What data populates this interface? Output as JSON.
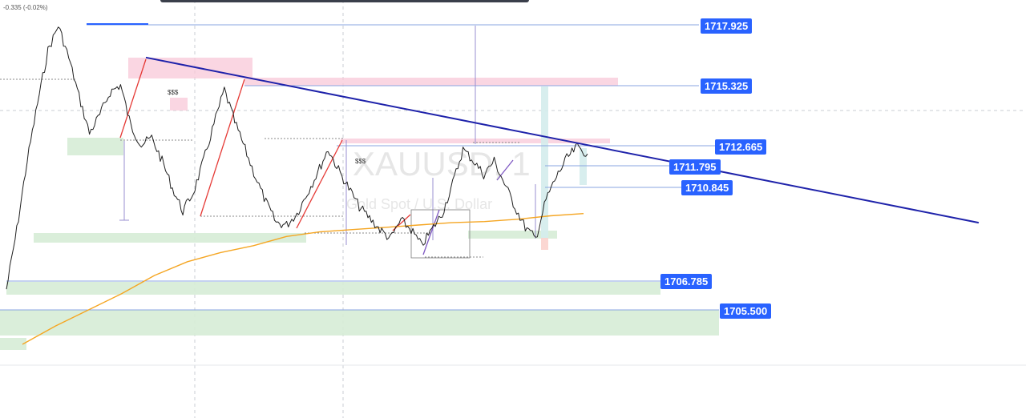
{
  "chart_data": {
    "type": "line",
    "symbol": "XAUUSD, 1",
    "instrument": "Gold Spot / U.S. Dollar",
    "change_text": "-0.335 (-0.02%)",
    "liquidity_tag": "$$$",
    "price_levels": [
      "1717.925",
      "1715.325",
      "1712.665",
      "1711.795",
      "1710.845",
      "1706.785",
      "1705.500"
    ],
    "ylim": [
      1703.5,
      1719.0
    ],
    "price_series": [
      1706.4,
      1709.0,
      1712.0,
      1714.5,
      1716.8,
      1717.9,
      1716.5,
      1714.8,
      1713.2,
      1714.0,
      1715.0,
      1715.3,
      1713.5,
      1712.7,
      1713.0,
      1712.0,
      1710.8,
      1709.8,
      1710.6,
      1712.0,
      1713.6,
      1715.1,
      1713.7,
      1712.5,
      1711.3,
      1710.2,
      1709.3,
      1709.2,
      1709.7,
      1710.6,
      1711.5,
      1712.5,
      1711.6,
      1710.8,
      1710.0,
      1709.5,
      1709.0,
      1708.6,
      1709.4,
      1709.0,
      1708.3,
      1709.0,
      1709.7,
      1711.0,
      1712.5,
      1712.0,
      1711.4,
      1712.0,
      1711.0,
      1710.0,
      1709.1,
      1708.6,
      1710.3,
      1711.3,
      1712.1,
      1712.6,
      1712.3
    ],
    "moving_average": [
      1704.0,
      1704.8,
      1705.5,
      1706.2,
      1707.0,
      1707.6,
      1708.0,
      1708.3,
      1708.7,
      1708.9,
      1709.0,
      1709.1,
      1709.2,
      1709.3,
      1709.35,
      1709.45,
      1709.6,
      1709.7
    ],
    "trendline": {
      "start": 1716.5,
      "end": 1709.3
    },
    "grid": true
  }
}
